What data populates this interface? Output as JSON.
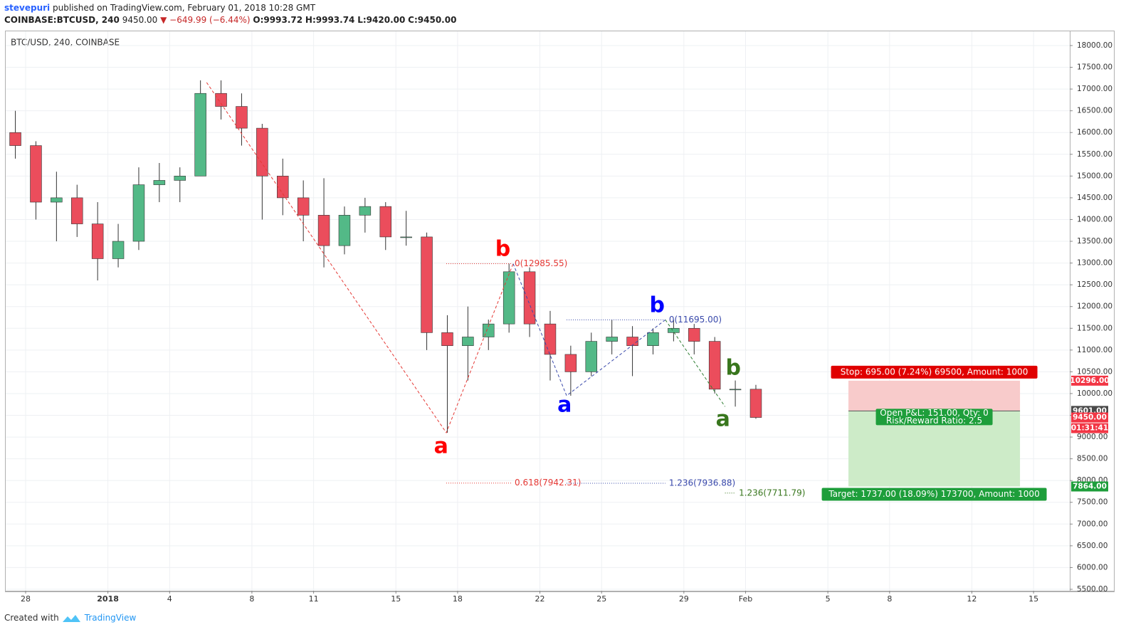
{
  "header": {
    "author": "stevepuri",
    "published": "published on TradingView.com, February 01, 2018 10:28 GMT",
    "symbol": "COINBASE:BTCUSD, 240",
    "last": "9450.00",
    "change": "▼ −649.99 (−6.44%)",
    "ohlc": [
      "O:9993.72",
      "H:9993.74",
      "L:9420.00",
      "C:9450.00"
    ]
  },
  "footer": {
    "created": "Created with",
    "brand": "TradingView"
  },
  "chart_data": {
    "type": "candlestick",
    "title": "BTC/USD, 240, COINBASE",
    "up_color": "#53b987",
    "down_color": "#eb4d5c",
    "x": [
      -0.5,
      0.5,
      1.5,
      2.5,
      3.5,
      4.5,
      5.5,
      6.5,
      7.5,
      8.5,
      9.5,
      10.5,
      11.5,
      12.5,
      13.5,
      14.5,
      15.5,
      16.5,
      17.5,
      18.5,
      19.5,
      20.5,
      21.5,
      22.5,
      23.5,
      24.5,
      25.5,
      26.5,
      27.5,
      28.5,
      29.5,
      30.5,
      31.5,
      32.5,
      33.5,
      34.5,
      35.5
    ],
    "candles": [
      [
        16000,
        16500,
        15400,
        15700
      ],
      [
        15700,
        15800,
        14000,
        14400
      ],
      [
        14400,
        15100,
        13500,
        14500
      ],
      [
        14500,
        14800,
        13600,
        13900
      ],
      [
        13900,
        14400,
        12600,
        13100
      ],
      [
        13100,
        13900,
        12900,
        13500
      ],
      [
        13500,
        15200,
        13300,
        14800
      ],
      [
        14800,
        15300,
        14400,
        14900
      ],
      [
        14900,
        15200,
        14400,
        15000
      ],
      [
        15000,
        17200,
        15000,
        16900
      ],
      [
        16900,
        17200,
        16300,
        16600
      ],
      [
        16600,
        16900,
        15700,
        16100
      ],
      [
        16100,
        16200,
        14000,
        15000
      ],
      [
        15000,
        15400,
        14100,
        14500
      ],
      [
        14500,
        14900,
        13500,
        14100
      ],
      [
        14100,
        14950,
        12900,
        13400
      ],
      [
        13400,
        14300,
        13200,
        14100
      ],
      [
        14100,
        14500,
        13700,
        14300
      ],
      [
        14300,
        14400,
        13300,
        13600
      ],
      [
        13600,
        14200,
        13400,
        13600
      ],
      [
        13600,
        13700,
        11000,
        11400
      ],
      [
        11400,
        11800,
        9100,
        11100
      ],
      [
        11100,
        12000,
        10300,
        11300
      ],
      [
        11300,
        11700,
        11000,
        11600
      ],
      [
        11600,
        12985,
        11400,
        12800
      ],
      [
        12800,
        12900,
        11300,
        11600
      ],
      [
        11600,
        11900,
        10300,
        10900
      ],
      [
        10900,
        11100,
        9950,
        10500
      ],
      [
        10500,
        11400,
        10400,
        11200
      ],
      [
        11200,
        11700,
        10900,
        11300
      ],
      [
        11300,
        11550,
        10400,
        11100
      ],
      [
        11100,
        11500,
        10900,
        11400
      ],
      [
        11400,
        11695,
        11200,
        11500
      ],
      [
        11500,
        11600,
        10900,
        11200
      ],
      [
        11200,
        11300,
        10000,
        10100
      ],
      [
        10100,
        10300,
        9700,
        10100
      ],
      [
        10100,
        10200,
        9420,
        9450
      ]
    ],
    "xlim": [
      -0.969,
      50.76
    ],
    "xticks": [
      {
        "value": 0,
        "label": "28"
      },
      {
        "value": 4,
        "label": "2018"
      },
      {
        "value": 7,
        "label": "4"
      },
      {
        "value": 11,
        "label": "8"
      },
      {
        "value": 14,
        "label": "11"
      },
      {
        "value": 18,
        "label": "15"
      },
      {
        "value": 21,
        "label": "18"
      },
      {
        "value": 25,
        "label": "22"
      },
      {
        "value": 28,
        "label": "25"
      },
      {
        "value": 32,
        "label": "29"
      },
      {
        "value": 35,
        "label": "Feb"
      },
      {
        "value": 39,
        "label": "5"
      },
      {
        "value": 42,
        "label": "8"
      },
      {
        "value": 46,
        "label": "12"
      },
      {
        "value": 49,
        "label": "15"
      }
    ],
    "ylim": [
      5467,
      18327
    ],
    "yticks": [
      {
        "value": 5500,
        "label": "5500.00"
      },
      {
        "value": 6000,
        "label": "6000.00"
      },
      {
        "value": 6500,
        "label": "6500.00"
      },
      {
        "value": 7000,
        "label": "7000.00"
      },
      {
        "value": 7500,
        "label": "7500.00"
      },
      {
        "value": 8000,
        "label": "8000.00"
      },
      {
        "value": 8500,
        "label": "8500.00"
      },
      {
        "value": 9000,
        "label": "9000.00"
      },
      {
        "value": 9500,
        "label": "9500.00"
      },
      {
        "value": 10000,
        "label": "10000.00"
      },
      {
        "value": 10500,
        "label": "10500.00"
      },
      {
        "value": 11000,
        "label": "11000.00"
      },
      {
        "value": 11500,
        "label": "11500.00"
      },
      {
        "value": 12000,
        "label": "12000.00"
      },
      {
        "value": 12500,
        "label": "12500.00"
      },
      {
        "value": 13000,
        "label": "13000.00"
      },
      {
        "value": 13500,
        "label": "13500.00"
      },
      {
        "value": 14000,
        "label": "14000.00"
      },
      {
        "value": 14500,
        "label": "14500.00"
      },
      {
        "value": 15000,
        "label": "15000.00"
      },
      {
        "value": 15500,
        "label": "15500.00"
      },
      {
        "value": 16000,
        "label": "16000.00"
      },
      {
        "value": 16500,
        "label": "16500.00"
      },
      {
        "value": 17000,
        "label": "17000.00"
      },
      {
        "value": 17500,
        "label": "17500.00"
      },
      {
        "value": 18000,
        "label": "18000.00"
      }
    ],
    "grid": true,
    "wave_lines": [
      {
        "color": "#e53935",
        "x": [
          8.8,
          20.45,
          23.7
        ],
        "values": [
          17150,
          9100,
          12985
        ]
      },
      {
        "color": "#3949ab",
        "x": [
          23.7,
          26.3,
          31.1
        ],
        "values": [
          12985,
          9950,
          11695
        ]
      },
      {
        "color": "#2e7d32",
        "x": [
          31.1,
          34.0
        ],
        "values": [
          11695,
          9700
        ]
      }
    ],
    "wave_labels": [
      {
        "label": "a",
        "color": "#ff0000",
        "x": 20.2,
        "value": 8772
      },
      {
        "label": "b",
        "color": "#ff0000",
        "x": 23.2,
        "value": 13304
      },
      {
        "label": "a",
        "color": "#0000ff",
        "x": 26.2,
        "value": 9720
      },
      {
        "label": "b",
        "color": "#0000ff",
        "x": 30.7,
        "value": 12012
      },
      {
        "label": "a",
        "color": "#38761d",
        "x": 33.9,
        "value": 9394
      },
      {
        "label": "b",
        "color": "#38761d",
        "x": 34.4,
        "value": 10572
      }
    ],
    "fib_levels": [
      {
        "label": "0(12985.55)",
        "color": "#e53935",
        "x": [
          20.45,
          23.6
        ],
        "value": 12985.55
      },
      {
        "label": "0.618(7942.31)",
        "color": "#e53935",
        "x": [
          20.45,
          23.6
        ],
        "value": 7942.31
      },
      {
        "label": "0(11695.00)",
        "color": "#3949ab",
        "x": [
          26.3,
          31.1
        ],
        "value": 11695
      },
      {
        "label": "1.236(7936.88)",
        "color": "#3949ab",
        "x": [
          26.3,
          31.1
        ],
        "value": 7936.88
      },
      {
        "label": "1.236(7711.79)",
        "color": "#38761d",
        "x": [
          34.0,
          34.5
        ],
        "value": 7711.79
      }
    ],
    "position": {
      "x": [
        40.0,
        48.34
      ],
      "entry": 9601,
      "stop": 10296,
      "target": 7864,
      "stop_label": "Stop: 695.00 (7.24%) 69500, Amount: 1000",
      "pnl_label": "Open P&L: 151.00, Qty: 0",
      "rr_label": "Risk/Reward Ratio: 2.5",
      "target_label": "Target: 1737.00 (18.09%) 173700, Amount: 1000"
    },
    "price_badges": [
      {
        "value": 10296,
        "label": "10296.00",
        "color": "#f23645"
      },
      {
        "value": 9601,
        "label": "9601.00",
        "color": "#4a4a4a"
      },
      {
        "value": 9450,
        "label": "9450.00",
        "color": "#f23645"
      },
      {
        "value": 7864,
        "label": "7864.00",
        "color": "#1e9e3b"
      }
    ],
    "countdown": "01:31:41"
  }
}
